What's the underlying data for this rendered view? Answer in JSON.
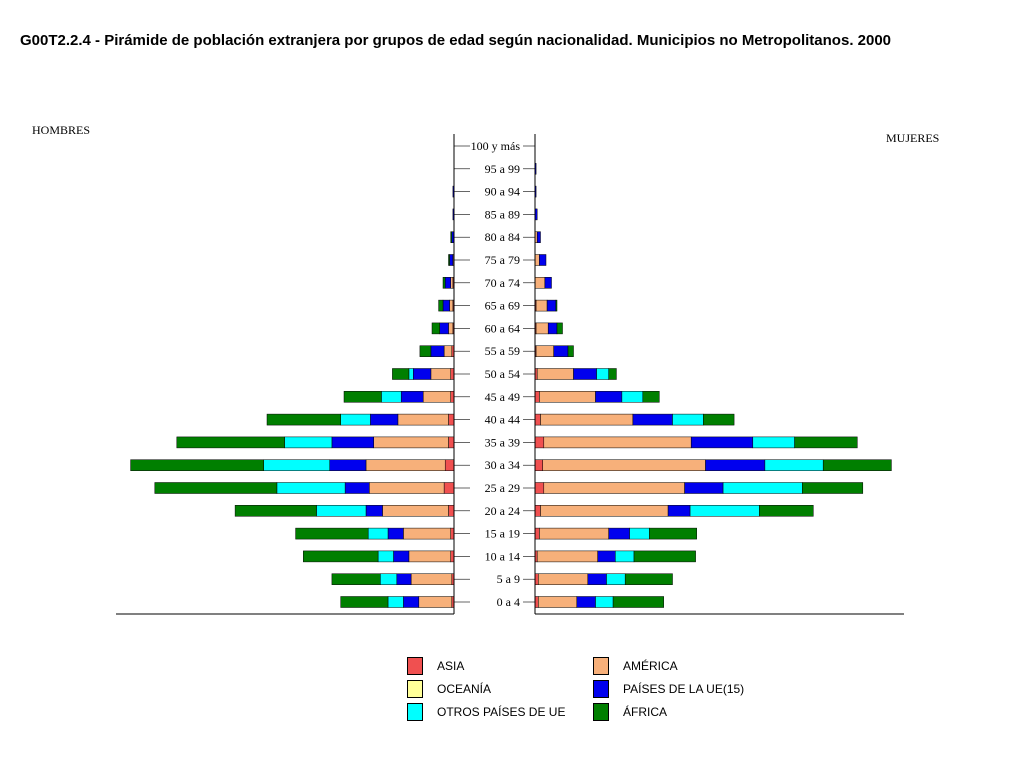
{
  "title": "G00T2.2.4 - Pirámide de población extranjera por grupos de edad según nacionalidad. Municipios no Metropolitanos. 2000",
  "labels": {
    "men": "HOMBRES",
    "women": "MUJERES"
  },
  "legend": [
    {
      "key": "asia",
      "label": "ASIA"
    },
    {
      "key": "america",
      "label": "AMÉRICA"
    },
    {
      "key": "oceania",
      "label": "OCEANÍA"
    },
    {
      "key": "ue15",
      "label": "PAÍSES DE LA UE(15)"
    },
    {
      "key": "otros_ue",
      "label": "OTROS PAÍSES DE UE"
    },
    {
      "key": "africa",
      "label": "ÁFRICA"
    }
  ],
  "chart_data": {
    "type": "bar",
    "orientation": "horizontal-pyramid",
    "title": "G00T2.2.4 - Pirámide de población extranjera por grupos de edad según nacionalidad. Municipios no Metropolitanos. 2000",
    "sides": [
      "HOMBRES",
      "MUJERES"
    ],
    "categories": [
      "0 a 4",
      "5 a 9",
      "10 a 14",
      "15 a 19",
      "20 a 24",
      "25 a 29",
      "30 a 34",
      "35 a 39",
      "40 a 44",
      "45 a 49",
      "50 a 54",
      "55 a 59",
      "60 a 64",
      "65 a 69",
      "70 a 74",
      "75 a 79",
      "80 a 84",
      "85 a 89",
      "90 a 94",
      "95 a 99",
      "100 y más"
    ],
    "stack_order": [
      "asia",
      "america",
      "oceania",
      "ue15",
      "otros_ue",
      "africa"
    ],
    "colors": {
      "asia": "#f05050",
      "america": "#f7b07a",
      "oceania": "#ffff99",
      "ue15": "#0000ee",
      "otros_ue": "#00ffff",
      "africa": "#007f00"
    },
    "series_hombres": [
      {
        "name": "ASIA",
        "key": "asia",
        "values": [
          2,
          2,
          3,
          3,
          5,
          9,
          8,
          5,
          5,
          3,
          3,
          2,
          1,
          1,
          1,
          0,
          0,
          0,
          0,
          0,
          0
        ]
      },
      {
        "name": "AMÉRICA",
        "key": "america",
        "values": [
          30,
          37,
          38,
          43,
          60,
          68,
          72,
          68,
          46,
          25,
          18,
          7,
          4,
          3,
          2,
          1,
          0,
          0,
          0,
          0,
          0
        ]
      },
      {
        "name": "OCEANÍA",
        "key": "oceania",
        "values": [
          0,
          0,
          0,
          0,
          0,
          0,
          0,
          0,
          0,
          0,
          0,
          0,
          0,
          0,
          0,
          0,
          0,
          0,
          0,
          0,
          0
        ]
      },
      {
        "name": "PAÍSES DE LA UE(15)",
        "key": "ue15",
        "values": [
          14,
          13,
          14,
          14,
          15,
          22,
          33,
          38,
          25,
          20,
          16,
          12,
          8,
          6,
          5,
          3,
          2,
          1,
          1,
          0,
          0
        ]
      },
      {
        "name": "OTROS PAÍSES DE UE",
        "key": "otros_ue",
        "values": [
          14,
          15,
          14,
          18,
          45,
          62,
          60,
          43,
          27,
          18,
          4,
          0,
          0,
          0,
          0,
          0,
          0,
          0,
          0,
          0,
          0
        ]
      },
      {
        "name": "ÁFRICA",
        "key": "africa",
        "values": [
          43,
          44,
          68,
          66,
          74,
          111,
          121,
          98,
          67,
          34,
          15,
          10,
          7,
          4,
          2,
          1,
          1,
          0,
          0,
          0,
          0
        ]
      }
    ],
    "series_mujeres": [
      {
        "name": "ASIA",
        "key": "asia",
        "values": [
          3,
          3,
          2,
          4,
          5,
          8,
          7,
          8,
          5,
          4,
          2,
          1,
          1,
          1,
          0,
          0,
          0,
          0,
          0,
          0,
          0
        ]
      },
      {
        "name": "AMÉRICA",
        "key": "america",
        "values": [
          35,
          45,
          55,
          63,
          116,
          128,
          148,
          134,
          84,
          51,
          33,
          16,
          11,
          10,
          9,
          4,
          2,
          0,
          0,
          0,
          0
        ]
      },
      {
        "name": "OCEANÍA",
        "key": "oceania",
        "values": [
          0,
          0,
          0,
          0,
          0,
          0,
          0,
          0,
          0,
          0,
          0,
          0,
          0,
          0,
          0,
          0,
          0,
          0,
          0,
          0,
          0
        ]
      },
      {
        "name": "PAÍSES DE LA UE(15)",
        "key": "ue15",
        "values": [
          17,
          17,
          16,
          19,
          20,
          35,
          54,
          56,
          36,
          24,
          21,
          13,
          8,
          8,
          6,
          6,
          3,
          2,
          1,
          1,
          0
        ]
      },
      {
        "name": "OTROS PAÍSES DE UE",
        "key": "otros_ue",
        "values": [
          16,
          17,
          17,
          18,
          63,
          72,
          53,
          38,
          28,
          19,
          11,
          0,
          0,
          0,
          0,
          0,
          0,
          0,
          0,
          0,
          0
        ]
      },
      {
        "name": "ÁFRICA",
        "key": "africa",
        "values": [
          46,
          43,
          56,
          43,
          49,
          55,
          62,
          57,
          28,
          15,
          7,
          5,
          5,
          1,
          0,
          0,
          0,
          0,
          0,
          0,
          0
        ]
      }
    ],
    "xlim": [
      0,
      300
    ],
    "grid": false,
    "legend_position": "bottom-center"
  }
}
